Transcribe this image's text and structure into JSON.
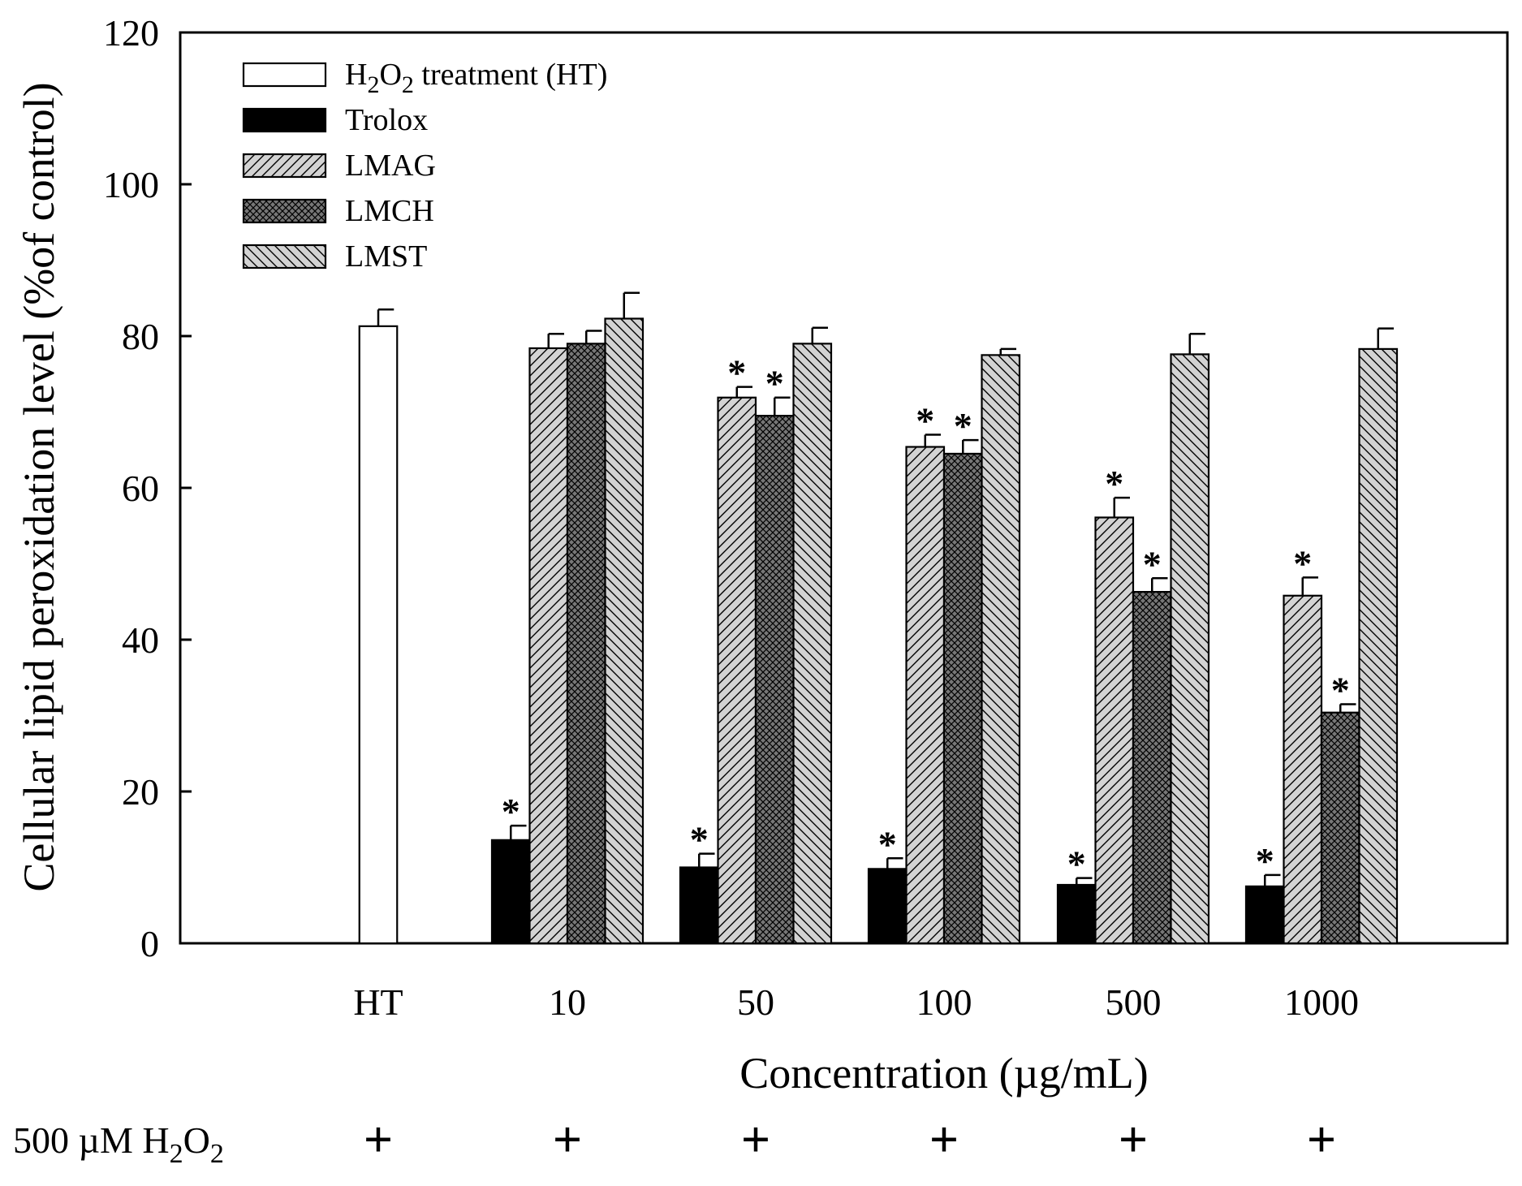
{
  "chart_data": {
    "type": "bar",
    "ylabel": "Cellular lipid peroxidation level (%of control)",
    "xlabel": "Concentration (µg/mL)",
    "ylim": [
      0,
      120
    ],
    "yticks": [
      "0",
      "20",
      "40",
      "60",
      "80",
      "100",
      "120"
    ],
    "categories": [
      "HT",
      "10",
      "50",
      "100",
      "500",
      "1000"
    ],
    "treatment_row": {
      "label_prefix": "500 µM H",
      "label_sub1": "2",
      "label_mid": "O",
      "label_sub2": "2",
      "marks": [
        "+",
        "+",
        "+",
        "+",
        "+",
        "+"
      ]
    },
    "legend": {
      "ht": {
        "prefix": "H",
        "sub1": "2",
        "mid": "O",
        "sub2": "2",
        "suffix": " treatment (HT)"
      }
    },
    "series": [
      {
        "name": "H2O2 treatment (HT)",
        "pattern": "white",
        "values": [
          81.3,
          null,
          null,
          null,
          null,
          null
        ],
        "errors": [
          2.2,
          null,
          null,
          null,
          null,
          null
        ],
        "significant": [
          false,
          false,
          false,
          false,
          false,
          false
        ]
      },
      {
        "name": "Trolox",
        "pattern": "black",
        "values": [
          null,
          13.6,
          10.0,
          9.8,
          7.7,
          7.5
        ],
        "errors": [
          null,
          1.9,
          1.8,
          1.4,
          0.9,
          1.5
        ],
        "significant": [
          false,
          true,
          true,
          true,
          true,
          true
        ]
      },
      {
        "name": "LMAG",
        "pattern": "fwd",
        "values": [
          null,
          78.4,
          71.9,
          65.4,
          56.1,
          45.8
        ],
        "errors": [
          null,
          1.9,
          1.4,
          1.6,
          2.6,
          2.4
        ],
        "significant": [
          false,
          false,
          true,
          true,
          true,
          true
        ]
      },
      {
        "name": "LMCH",
        "pattern": "cross",
        "values": [
          null,
          79.0,
          69.5,
          64.5,
          46.3,
          30.4
        ],
        "errors": [
          null,
          1.7,
          2.4,
          1.8,
          1.8,
          1.1
        ],
        "significant": [
          false,
          false,
          true,
          true,
          true,
          true
        ]
      },
      {
        "name": "LMST",
        "pattern": "back",
        "values": [
          null,
          82.3,
          79.0,
          77.5,
          77.6,
          78.3
        ],
        "errors": [
          null,
          3.4,
          2.1,
          0.8,
          2.7,
          2.7
        ],
        "significant": [
          false,
          false,
          false,
          false,
          false,
          false
        ]
      }
    ],
    "significance_marker": "*"
  }
}
